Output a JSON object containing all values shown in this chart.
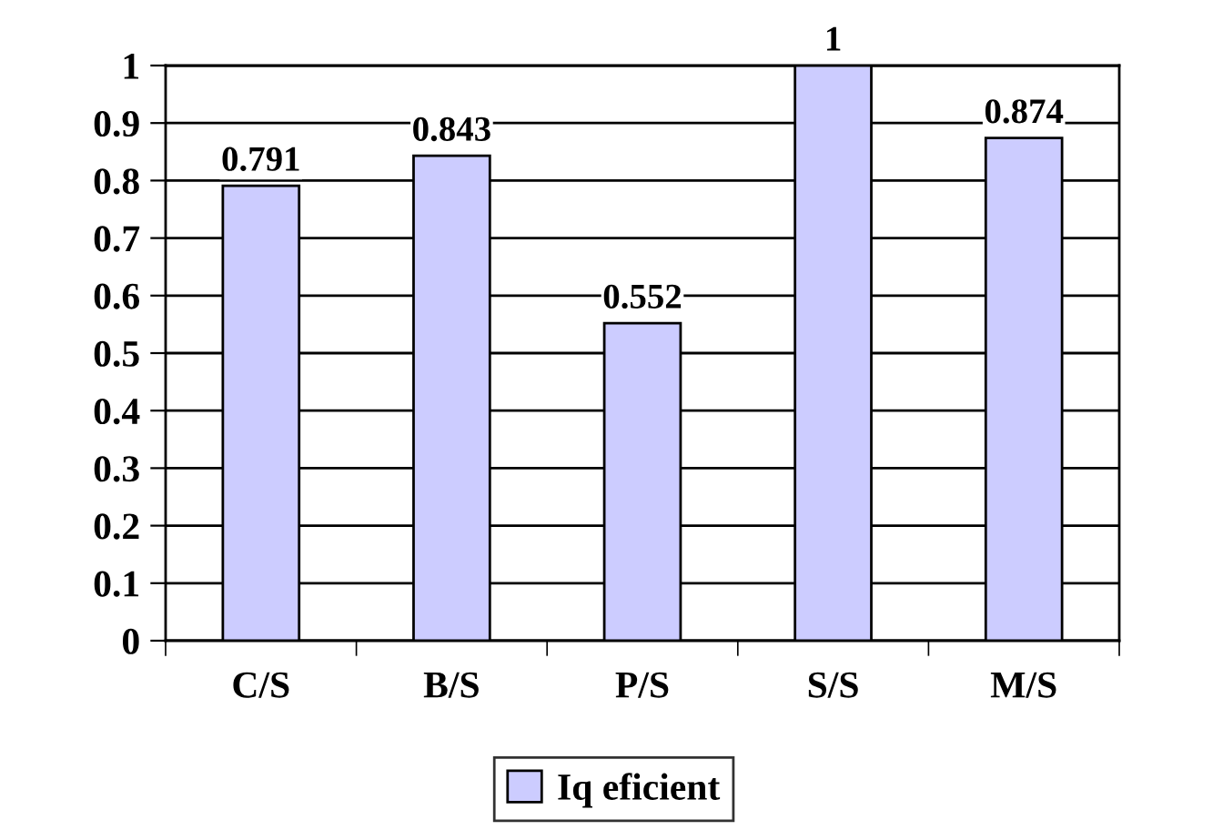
{
  "chart_data": {
    "type": "bar",
    "categories": [
      "C/S",
      "B/S",
      "P/S",
      "S/S",
      "M/S"
    ],
    "series": [
      {
        "name": "Iq eficient",
        "color": "#ccccff",
        "values": [
          0.791,
          0.843,
          0.552,
          1,
          0.874
        ]
      }
    ],
    "ylim": [
      0,
      1
    ],
    "yticks": [
      0,
      0.1,
      0.2,
      0.3,
      0.4,
      0.5,
      0.6,
      0.7,
      0.8,
      0.9,
      1
    ],
    "grid": "y",
    "legend": "bottom",
    "data_labels": true
  }
}
